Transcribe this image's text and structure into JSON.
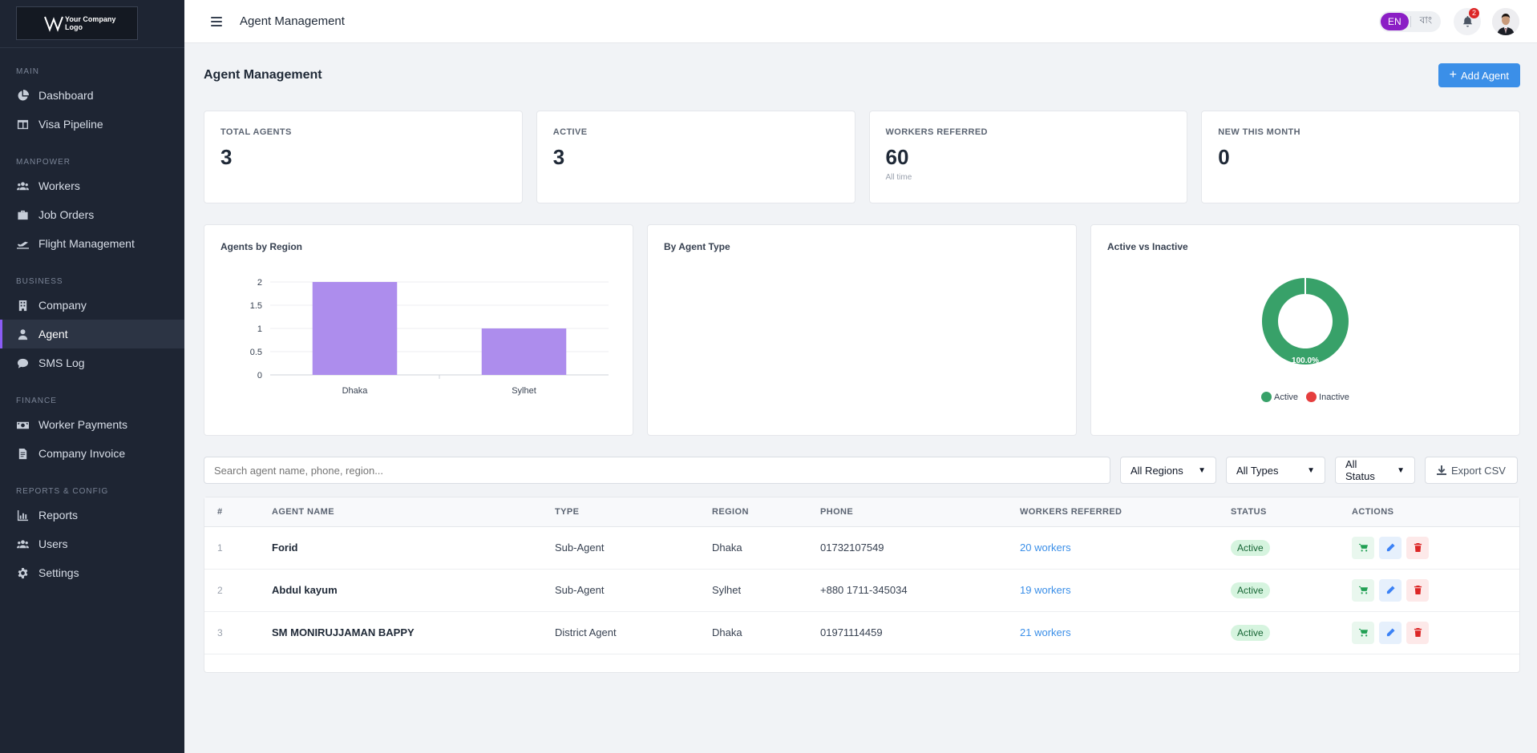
{
  "sidebar": {
    "logo_text_1": "Your Company",
    "logo_text_2": "Logo",
    "sections": [
      {
        "label": "MAIN",
        "items": [
          {
            "label": "Dashboard",
            "icon": "pie-chart-icon"
          },
          {
            "label": "Visa Pipeline",
            "icon": "columns-icon"
          }
        ]
      },
      {
        "label": "MANPOWER",
        "items": [
          {
            "label": "Workers",
            "icon": "users-icon"
          },
          {
            "label": "Job Orders",
            "icon": "briefcase-icon"
          },
          {
            "label": "Flight Management",
            "icon": "plane-icon"
          }
        ]
      },
      {
        "label": "BUSINESS",
        "items": [
          {
            "label": "Company",
            "icon": "building-icon"
          },
          {
            "label": "Agent",
            "icon": "user-icon",
            "active": true
          },
          {
            "label": "SMS Log",
            "icon": "chat-icon"
          }
        ]
      },
      {
        "label": "FINANCE",
        "items": [
          {
            "label": "Worker Payments",
            "icon": "money-icon"
          },
          {
            "label": "Company Invoice",
            "icon": "invoice-icon"
          }
        ]
      },
      {
        "label": "REPORTS & CONFIG",
        "items": [
          {
            "label": "Reports",
            "icon": "bar-chart-icon"
          },
          {
            "label": "Users",
            "icon": "users-icon"
          },
          {
            "label": "Settings",
            "icon": "gear-icon"
          }
        ]
      }
    ]
  },
  "topbar": {
    "title": "Agent Management",
    "lang_en": "EN",
    "lang_bn": "বাং",
    "notifications": "2"
  },
  "page": {
    "title": "Agent Management",
    "add_button": "Add Agent"
  },
  "stats": [
    {
      "label": "TOTAL AGENTS",
      "value": "3",
      "sub": ""
    },
    {
      "label": "ACTIVE",
      "value": "3",
      "sub": ""
    },
    {
      "label": "WORKERS REFERRED",
      "value": "60",
      "sub": "All time"
    },
    {
      "label": "NEW THIS MONTH",
      "value": "0",
      "sub": ""
    }
  ],
  "charts": {
    "region_title": "Agents by Region",
    "type_title": "By Agent Type",
    "status_title": "Active vs Inactive",
    "donut_label": "100.0%",
    "legend_active": "Active",
    "legend_inactive": "Inactive"
  },
  "chart_data": [
    {
      "type": "bar",
      "title": "Agents by Region",
      "categories": [
        "Dhaka",
        "Sylhet"
      ],
      "values": [
        2,
        1
      ],
      "ylim": [
        0,
        2
      ],
      "yticks": [
        "0",
        "0.5",
        "1",
        "1.5",
        "2"
      ],
      "color": "#ad8ded",
      "grid": true
    },
    {
      "type": "pie",
      "title": "Active vs Inactive",
      "categories": [
        "Active",
        "Inactive"
      ],
      "values": [
        3,
        0
      ],
      "colors": [
        "#38a169",
        "#e53e3e"
      ],
      "legend": "bottom"
    }
  ],
  "filters": {
    "search_placeholder": "Search agent name, phone, region...",
    "region": "All Regions",
    "type": "All Types",
    "status": "All Status",
    "export": "Export CSV"
  },
  "table": {
    "headers": [
      "#",
      "AGENT NAME",
      "TYPE",
      "REGION",
      "PHONE",
      "WORKERS REFERRED",
      "STATUS",
      "ACTIONS"
    ],
    "rows": [
      {
        "num": "1",
        "name": "Forid",
        "type": "Sub-Agent",
        "region": "Dhaka",
        "phone": "01732107549",
        "workers": "20 workers",
        "status": "Active"
      },
      {
        "num": "2",
        "name": "Abdul kayum",
        "type": "Sub-Agent",
        "region": "Sylhet",
        "phone": "+880 1711-345034",
        "workers": "19 workers",
        "status": "Active"
      },
      {
        "num": "3",
        "name": "SM MONIRUJJAMAN BAPPY",
        "type": "District Agent",
        "region": "Dhaka",
        "phone": "01971114459",
        "workers": "21 workers",
        "status": "Active"
      }
    ]
  }
}
